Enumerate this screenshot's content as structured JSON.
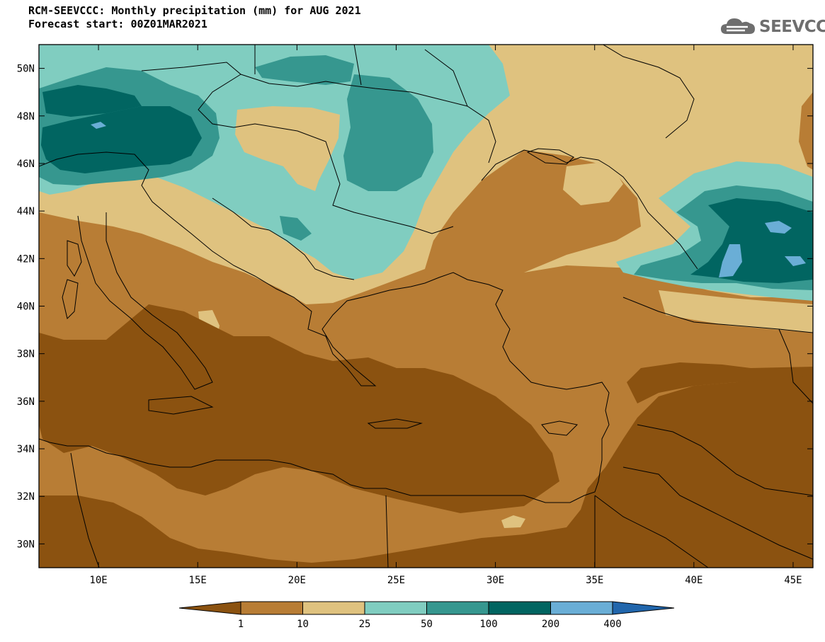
{
  "title_line1": "RCM-SEEVCCC: Monthly precipitation (mm) for AUG 2021",
  "title_line2": "Forecast start: 00Z01MAR2021",
  "logo": {
    "text": "SEEVCCC",
    "icon": "cloud-icon"
  },
  "map": {
    "lon_range": [
      7,
      46
    ],
    "lat_range": [
      29,
      51
    ],
    "lon_ticks": [
      {
        "value": 10,
        "label": "10E"
      },
      {
        "value": 15,
        "label": "15E"
      },
      {
        "value": 20,
        "label": "20E"
      },
      {
        "value": 25,
        "label": "25E"
      },
      {
        "value": 30,
        "label": "30E"
      },
      {
        "value": 35,
        "label": "35E"
      },
      {
        "value": 40,
        "label": "40E"
      },
      {
        "value": 45,
        "label": "45E"
      }
    ],
    "lat_ticks": [
      {
        "value": 30,
        "label": "30N"
      },
      {
        "value": 32,
        "label": "32N"
      },
      {
        "value": 34,
        "label": "34N"
      },
      {
        "value": 36,
        "label": "36N"
      },
      {
        "value": 38,
        "label": "38N"
      },
      {
        "value": 40,
        "label": "40N"
      },
      {
        "value": 42,
        "label": "42N"
      },
      {
        "value": 44,
        "label": "44N"
      },
      {
        "value": 46,
        "label": "46N"
      },
      {
        "value": 48,
        "label": "48N"
      },
      {
        "value": 50,
        "label": "50N"
      }
    ]
  },
  "colorbar": {
    "colors": [
      "#8b5210",
      "#b87d35",
      "#dfc27f",
      "#80cdc0",
      "#36978f",
      "#016561",
      "#6aaed6",
      "#2166ac"
    ],
    "labels": [
      "1",
      "10",
      "25",
      "50",
      "100",
      "200",
      "400"
    ]
  }
}
